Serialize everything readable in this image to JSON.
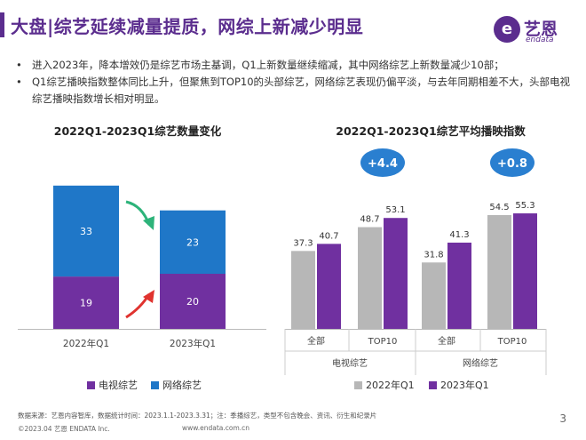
{
  "title": "大盘|综艺延续减量提质，网综上新减少明显",
  "logo": {
    "mark": "e",
    "name": "艺恩",
    "sub": "endata"
  },
  "bullets": [
    "进入2023年，降本增效仍是综艺市场主基调，Q1上新数量继续缩减，其中网络综艺上新数量减少10部；",
    "Q1综艺播映指数整体同比上升，但聚焦到TOP10的头部综艺，网络综艺表现仍偏平淡，与去年同期相差不大，头部电视综艺播映指数增长相对明显。"
  ],
  "colors": {
    "purple": "#7030a0",
    "blue": "#1f77c8",
    "gray": "#b7b7b7",
    "title": "#5b2d8e",
    "badge": "#2a7fd0",
    "green": "#2db37a",
    "red": "#e0332f"
  },
  "chart_data": [
    {
      "type": "bar",
      "stacked": true,
      "title": "2022Q1-2023Q1综艺数量变化",
      "categories": [
        "2022年Q1",
        "2023年Q1"
      ],
      "series": [
        {
          "name": "电视综艺",
          "values": [
            19,
            20
          ],
          "color": "#7030a0"
        },
        {
          "name": "网络综艺",
          "values": [
            33,
            23
          ],
          "color": "#1f77c8"
        }
      ],
      "legend_position": "bottom",
      "trend_arrows": [
        "down (网络综艺)",
        "up (电视综艺)"
      ]
    },
    {
      "type": "bar",
      "title": "2022Q1-2023Q1综艺平均播映指数",
      "categories": [
        "全部",
        "TOP10",
        "全部",
        "TOP10"
      ],
      "groups": [
        {
          "name": "电视综艺",
          "categories": [
            "全部",
            "TOP10"
          ]
        },
        {
          "name": "网络综艺",
          "categories": [
            "全部",
            "TOP10"
          ]
        }
      ],
      "series": [
        {
          "name": "2022年Q1",
          "values": [
            37.3,
            48.7,
            31.8,
            54.5
          ],
          "color": "#b7b7b7"
        },
        {
          "name": "2023年Q1",
          "values": [
            40.7,
            53.1,
            41.3,
            55.3
          ],
          "color": "#7030a0"
        }
      ],
      "annotations": [
        "+4.4",
        "+0.8"
      ],
      "legend_position": "bottom"
    }
  ],
  "footer": {
    "note": "数据来源：艺恩内容智库，数据统计时间：2023.1.1-2023.3.31；注：季播综艺，类型不包含晚会、资讯、衍生和纪录片",
    "copyright": "©2023.04 艺恩 ENDATA Inc.",
    "url": "www.endata.com.cn",
    "page": "3"
  }
}
